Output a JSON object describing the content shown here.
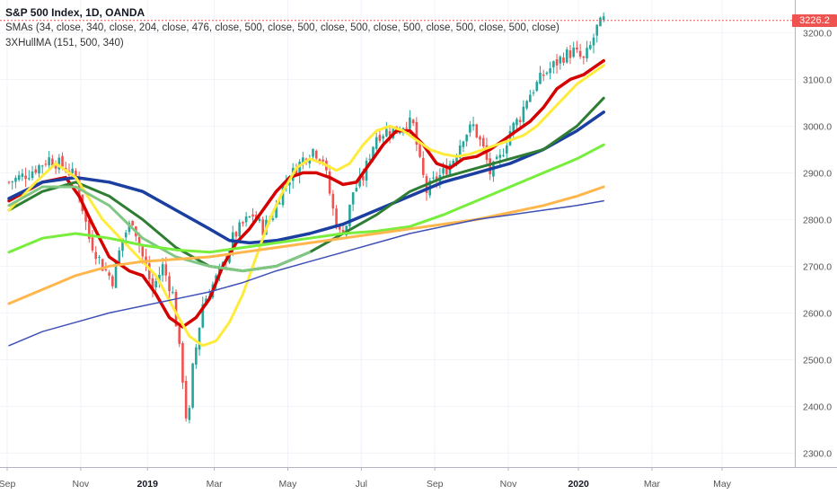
{
  "header": {
    "title": "S&P 500 Index, 1D, OANDA",
    "line2": "SMAs (34, close, 340, close, 204, close, 476, close, 500, close, 500, close, 500, close, 500, close, 500, close, 500, close)",
    "line3": "3XHullMA (151, 500, 340)"
  },
  "price_label": "3226.2",
  "colors": {
    "up": "#26a69a",
    "down": "#ef5350",
    "yellow": "#ffeb3b",
    "red": "#d50000",
    "darkgreen": "#2e7d32",
    "blue": "#1a3fa0",
    "brightgreen": "#76ee3b",
    "orange": "#ffb74d",
    "purple": "#3f51b5",
    "lightgreen": "#81c784"
  },
  "chart_data": {
    "type": "line",
    "title": "S&P 500 Index, 1D, OANDA",
    "x_ticks": [
      "Sep",
      "Nov",
      "2019",
      "Mar",
      "May",
      "Jul",
      "Sep",
      "Nov",
      "2020",
      "Mar",
      "May"
    ],
    "y_ticks": [
      2300.0,
      2400.0,
      2500.0,
      2600.0,
      2700.0,
      2800.0,
      2900.0,
      3000.0,
      3100.0,
      3200.0
    ],
    "ylim": [
      2270,
      3270
    ],
    "last_price": 3226.2,
    "price_path": [
      [
        0,
        2880
      ],
      [
        6,
        2900
      ],
      [
        12,
        2930
      ],
      [
        16,
        2915
      ],
      [
        20,
        2890
      ],
      [
        24,
        2760
      ],
      [
        28,
        2700
      ],
      [
        31,
        2670
      ],
      [
        34,
        2760
      ],
      [
        37,
        2800
      ],
      [
        40,
        2720
      ],
      [
        43,
        2650
      ],
      [
        46,
        2700
      ],
      [
        49,
        2640
      ],
      [
        52,
        2460
      ],
      [
        53.5,
        2340
      ],
      [
        55,
        2480
      ],
      [
        58,
        2620
      ],
      [
        61,
        2660
      ],
      [
        64,
        2700
      ],
      [
        67,
        2760
      ],
      [
        70,
        2790
      ],
      [
        73,
        2810
      ],
      [
        76,
        2780
      ],
      [
        79,
        2810
      ],
      [
        82,
        2870
      ],
      [
        85,
        2900
      ],
      [
        88,
        2930
      ],
      [
        91,
        2950
      ],
      [
        94,
        2930
      ],
      [
        97,
        2820
      ],
      [
        99,
        2770
      ],
      [
        101,
        2790
      ],
      [
        103,
        2860
      ],
      [
        106,
        2890
      ],
      [
        108,
        2940
      ],
      [
        110,
        2980
      ],
      [
        113,
        2990
      ],
      [
        116,
        2990
      ],
      [
        119,
        3010
      ],
      [
        121,
        3000
      ],
      [
        123,
        2920
      ],
      [
        125,
        2860
      ],
      [
        127,
        2880
      ],
      [
        130,
        2900
      ],
      [
        133,
        2930
      ],
      [
        136,
        2980
      ],
      [
        139,
        3000
      ],
      [
        142,
        2950
      ],
      [
        144,
        2900
      ],
      [
        147,
        2930
      ],
      [
        150,
        2990
      ],
      [
        153,
        3020
      ],
      [
        155,
        3060
      ],
      [
        157,
        3080
      ],
      [
        160,
        3110
      ],
      [
        163,
        3130
      ],
      [
        166,
        3150
      ],
      [
        169,
        3160
      ],
      [
        172,
        3140
      ],
      [
        174,
        3170
      ],
      [
        176,
        3210
      ],
      [
        178,
        3226.2
      ]
    ],
    "series": [
      {
        "name": "SMA 34",
        "color": "#d50000",
        "width": 3.5,
        "values": [
          [
            0,
            2840
          ],
          [
            10,
            2880
          ],
          [
            17,
            2890
          ],
          [
            21,
            2850
          ],
          [
            25,
            2790
          ],
          [
            30,
            2720
          ],
          [
            36,
            2690
          ],
          [
            40,
            2680
          ],
          [
            44,
            2640
          ],
          [
            48,
            2590
          ],
          [
            52,
            2570
          ],
          [
            56,
            2590
          ],
          [
            60,
            2630
          ],
          [
            64,
            2700
          ],
          [
            68,
            2750
          ],
          [
            72,
            2780
          ],
          [
            76,
            2820
          ],
          [
            80,
            2860
          ],
          [
            84,
            2890
          ],
          [
            88,
            2900
          ],
          [
            92,
            2900
          ],
          [
            96,
            2890
          ],
          [
            100,
            2875
          ],
          [
            104,
            2880
          ],
          [
            108,
            2920
          ],
          [
            112,
            2960
          ],
          [
            116,
            2990
          ],
          [
            120,
            2990
          ],
          [
            124,
            2960
          ],
          [
            128,
            2920
          ],
          [
            132,
            2910
          ],
          [
            136,
            2930
          ],
          [
            140,
            2935
          ],
          [
            144,
            2950
          ],
          [
            148,
            2970
          ],
          [
            152,
            2990
          ],
          [
            156,
            3010
          ],
          [
            160,
            3040
          ],
          [
            164,
            3080
          ],
          [
            168,
            3100
          ],
          [
            172,
            3110
          ],
          [
            176,
            3130
          ],
          [
            178,
            3140
          ]
        ]
      },
      {
        "name": "SMA 340",
        "color": "#1a3fa0",
        "width": 3.5,
        "values": [
          [
            0,
            2845
          ],
          [
            10,
            2880
          ],
          [
            20,
            2890
          ],
          [
            30,
            2880
          ],
          [
            40,
            2860
          ],
          [
            50,
            2820
          ],
          [
            60,
            2780
          ],
          [
            66,
            2755
          ],
          [
            72,
            2750
          ],
          [
            80,
            2755
          ],
          [
            90,
            2770
          ],
          [
            100,
            2790
          ],
          [
            110,
            2820
          ],
          [
            120,
            2850
          ],
          [
            130,
            2880
          ],
          [
            140,
            2900
          ],
          [
            150,
            2920
          ],
          [
            160,
            2950
          ],
          [
            170,
            2990
          ],
          [
            178,
            3030
          ]
        ]
      },
      {
        "name": "SMA 204",
        "color": "#2e7d32",
        "width": 3.0,
        "values": [
          [
            0,
            2820
          ],
          [
            10,
            2860
          ],
          [
            20,
            2880
          ],
          [
            30,
            2850
          ],
          [
            40,
            2800
          ],
          [
            50,
            2740
          ],
          [
            60,
            2700
          ],
          [
            70,
            2690
          ],
          [
            80,
            2700
          ],
          [
            90,
            2730
          ],
          [
            100,
            2770
          ],
          [
            110,
            2810
          ],
          [
            120,
            2860
          ],
          [
            130,
            2890
          ],
          [
            140,
            2910
          ],
          [
            150,
            2930
          ],
          [
            160,
            2950
          ],
          [
            170,
            3000
          ],
          [
            178,
            3060
          ]
        ]
      },
      {
        "name": "SMA 476",
        "color": "#ffeb3b",
        "width": 3.0,
        "values": [
          [
            0,
            2820
          ],
          [
            8,
            2880
          ],
          [
            14,
            2920
          ],
          [
            20,
            2890
          ],
          [
            28,
            2800
          ],
          [
            36,
            2740
          ],
          [
            44,
            2680
          ],
          [
            50,
            2600
          ],
          [
            54,
            2550
          ],
          [
            58,
            2530
          ],
          [
            62,
            2540
          ],
          [
            66,
            2580
          ],
          [
            70,
            2640
          ],
          [
            74,
            2720
          ],
          [
            78,
            2800
          ],
          [
            82,
            2860
          ],
          [
            86,
            2910
          ],
          [
            90,
            2930
          ],
          [
            94,
            2920
          ],
          [
            98,
            2905
          ],
          [
            102,
            2920
          ],
          [
            106,
            2960
          ],
          [
            110,
            2990
          ],
          [
            114,
            3000
          ],
          [
            118,
            2990
          ],
          [
            122,
            2970
          ],
          [
            126,
            2950
          ],
          [
            130,
            2940
          ],
          [
            134,
            2935
          ],
          [
            138,
            2940
          ],
          [
            142,
            2950
          ],
          [
            146,
            2960
          ],
          [
            150,
            2970
          ],
          [
            154,
            2980
          ],
          [
            158,
            3000
          ],
          [
            162,
            3030
          ],
          [
            166,
            3060
          ],
          [
            170,
            3090
          ],
          [
            174,
            3110
          ],
          [
            178,
            3130
          ]
        ]
      },
      {
        "name": "SMA 500 a",
        "color": "#81c784",
        "width": 3.0,
        "values": [
          [
            0,
            2830
          ],
          [
            10,
            2870
          ],
          [
            20,
            2870
          ],
          [
            30,
            2830
          ],
          [
            40,
            2760
          ],
          [
            50,
            2720
          ],
          [
            60,
            2700
          ],
          [
            70,
            2690
          ],
          [
            80,
            2700
          ],
          [
            90,
            2730
          ]
        ]
      },
      {
        "name": "SMA 500 b",
        "color": "#76ee3b",
        "width": 3.0,
        "values": [
          [
            0,
            2730
          ],
          [
            10,
            2760
          ],
          [
            20,
            2770
          ],
          [
            30,
            2760
          ],
          [
            40,
            2745
          ],
          [
            50,
            2735
          ],
          [
            60,
            2730
          ],
          [
            70,
            2740
          ],
          [
            80,
            2750
          ],
          [
            90,
            2760
          ],
          [
            100,
            2770
          ],
          [
            110,
            2775
          ],
          [
            120,
            2785
          ],
          [
            130,
            2810
          ],
          [
            140,
            2840
          ],
          [
            150,
            2870
          ],
          [
            160,
            2900
          ],
          [
            170,
            2930
          ],
          [
            178,
            2960
          ]
        ]
      },
      {
        "name": "SMA 500 c",
        "color": "#ffb74d",
        "width": 3.0,
        "values": [
          [
            0,
            2620
          ],
          [
            10,
            2650
          ],
          [
            20,
            2680
          ],
          [
            30,
            2700
          ],
          [
            40,
            2710
          ],
          [
            50,
            2715
          ],
          [
            60,
            2720
          ],
          [
            70,
            2730
          ],
          [
            80,
            2740
          ],
          [
            90,
            2750
          ],
          [
            100,
            2760
          ],
          [
            110,
            2770
          ],
          [
            120,
            2780
          ],
          [
            130,
            2790
          ],
          [
            140,
            2800
          ],
          [
            150,
            2815
          ],
          [
            160,
            2830
          ],
          [
            170,
            2850
          ],
          [
            178,
            2870
          ]
        ]
      },
      {
        "name": "SMA 500 d",
        "color": "#3f51b5",
        "width": 1.5,
        "values": [
          [
            0,
            2530
          ],
          [
            10,
            2560
          ],
          [
            20,
            2580
          ],
          [
            30,
            2600
          ],
          [
            40,
            2615
          ],
          [
            50,
            2630
          ],
          [
            60,
            2645
          ],
          [
            70,
            2665
          ],
          [
            80,
            2690
          ],
          [
            90,
            2710
          ],
          [
            100,
            2730
          ],
          [
            110,
            2750
          ],
          [
            120,
            2770
          ],
          [
            130,
            2785
          ],
          [
            140,
            2800
          ],
          [
            150,
            2810
          ],
          [
            160,
            2820
          ],
          [
            170,
            2830
          ],
          [
            178,
            2840
          ]
        ]
      }
    ]
  }
}
